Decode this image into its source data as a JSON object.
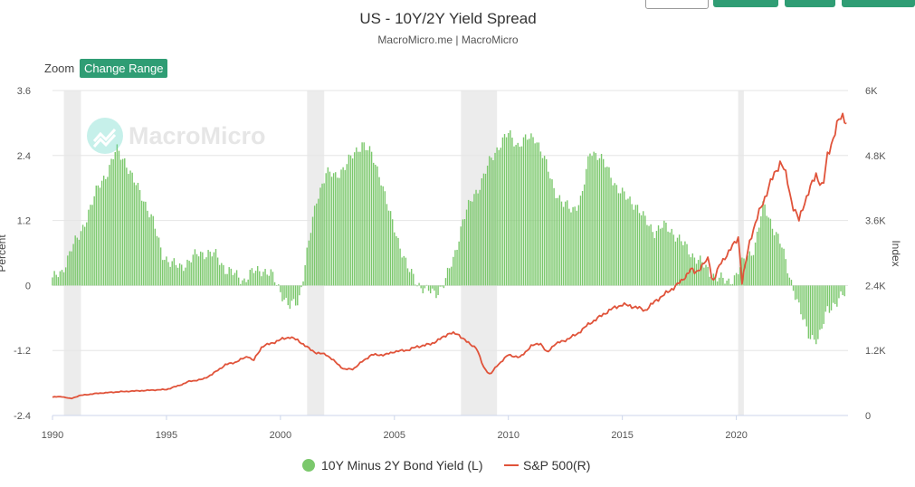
{
  "header": {
    "title": "US - 10Y/2Y Yield Spread",
    "subtitle": "MacroMicro.me | MacroMicro"
  },
  "controls": {
    "zoom_label": "Zoom",
    "change_range_label": "Change Range"
  },
  "watermark": {
    "text": "MacroMicro"
  },
  "colors": {
    "spread_bars": "#7bc86c",
    "sp500_line": "#e0533a",
    "recession_band": "#ececec",
    "accent_button": "#2f9d74"
  },
  "chart_data": {
    "type": "bar+line",
    "title": "US - 10Y/2Y Yield Spread",
    "subtitle": "MacroMicro.me | MacroMicro",
    "y_left_label": "Percent",
    "y_right_label": "Index",
    "y_left_range": [
      -2.4,
      3.6
    ],
    "y_left_ticks": [
      "3.6",
      "2.4",
      "1.2",
      "0",
      "-1.2",
      "-2.4"
    ],
    "y_right_range": [
      0,
      6000
    ],
    "y_right_ticks": [
      "6K",
      "4.8K",
      "3.6K",
      "2.4K",
      "1.2K",
      "0"
    ],
    "x_range": [
      1990,
      2024.9
    ],
    "x_ticks": [
      "1990",
      "1995",
      "2000",
      "2005",
      "2010",
      "2015",
      "2020"
    ],
    "recessions": [
      [
        1990.5,
        1991.25
      ],
      [
        2001.17,
        2001.92
      ],
      [
        2007.92,
        2009.5
      ],
      [
        2020.08,
        2020.33
      ]
    ],
    "legend": [
      "10Y Minus 2Y Bond Yield (L)",
      "S&P 500(R)"
    ],
    "legend_position": "bottom-center",
    "series": [
      {
        "name": "10Y Minus 2Y Bond Yield (L)",
        "type": "bar",
        "points": [
          [
            1990.0,
            0.15
          ],
          [
            1990.4,
            0.2
          ],
          [
            1990.8,
            0.7
          ],
          [
            1991.2,
            0.9
          ],
          [
            1991.6,
            1.4
          ],
          [
            1992.0,
            1.8
          ],
          [
            1992.4,
            2.1
          ],
          [
            1992.8,
            2.5
          ],
          [
            1993.2,
            2.3
          ],
          [
            1993.6,
            1.9
          ],
          [
            1994.0,
            1.6
          ],
          [
            1994.4,
            1.2
          ],
          [
            1994.8,
            0.6
          ],
          [
            1995.2,
            0.4
          ],
          [
            1995.6,
            0.35
          ],
          [
            1996.0,
            0.45
          ],
          [
            1996.4,
            0.6
          ],
          [
            1996.8,
            0.6
          ],
          [
            1997.2,
            0.55
          ],
          [
            1997.6,
            0.3
          ],
          [
            1998.0,
            0.2
          ],
          [
            1998.4,
            0.1
          ],
          [
            1998.8,
            0.25
          ],
          [
            1999.2,
            0.3
          ],
          [
            1999.6,
            0.2
          ],
          [
            2000.0,
            -0.1
          ],
          [
            2000.4,
            -0.4
          ],
          [
            2000.8,
            -0.3
          ],
          [
            2001.2,
            0.7
          ],
          [
            2001.6,
            1.6
          ],
          [
            2002.0,
            2.1
          ],
          [
            2002.4,
            2.0
          ],
          [
            2002.8,
            2.2
          ],
          [
            2003.2,
            2.4
          ],
          [
            2003.6,
            2.65
          ],
          [
            2004.0,
            2.4
          ],
          [
            2004.4,
            2.0
          ],
          [
            2004.8,
            1.3
          ],
          [
            2005.2,
            0.8
          ],
          [
            2005.6,
            0.3
          ],
          [
            2006.0,
            0.05
          ],
          [
            2006.4,
            -0.1
          ],
          [
            2006.8,
            -0.15
          ],
          [
            2007.2,
            0.05
          ],
          [
            2007.6,
            0.5
          ],
          [
            2008.0,
            1.2
          ],
          [
            2008.4,
            1.6
          ],
          [
            2008.8,
            1.9
          ],
          [
            2009.2,
            2.3
          ],
          [
            2009.6,
            2.6
          ],
          [
            2010.0,
            2.8
          ],
          [
            2010.4,
            2.6
          ],
          [
            2010.8,
            2.7
          ],
          [
            2011.2,
            2.75
          ],
          [
            2011.6,
            2.3
          ],
          [
            2012.0,
            1.8
          ],
          [
            2012.4,
            1.5
          ],
          [
            2012.8,
            1.4
          ],
          [
            2013.2,
            1.6
          ],
          [
            2013.6,
            2.5
          ],
          [
            2014.0,
            2.4
          ],
          [
            2014.4,
            2.1
          ],
          [
            2014.8,
            1.8
          ],
          [
            2015.2,
            1.6
          ],
          [
            2015.6,
            1.5
          ],
          [
            2016.0,
            1.2
          ],
          [
            2016.4,
            1.0
          ],
          [
            2016.8,
            1.1
          ],
          [
            2017.2,
            1.0
          ],
          [
            2017.6,
            0.8
          ],
          [
            2018.0,
            0.6
          ],
          [
            2018.4,
            0.45
          ],
          [
            2018.8,
            0.25
          ],
          [
            2019.2,
            0.15
          ],
          [
            2019.6,
            0.05
          ],
          [
            2020.0,
            0.2
          ],
          [
            2020.4,
            0.5
          ],
          [
            2020.8,
            0.7
          ],
          [
            2021.2,
            1.5
          ],
          [
            2021.6,
            1.1
          ],
          [
            2022.0,
            0.7
          ],
          [
            2022.4,
            0.1
          ],
          [
            2022.8,
            -0.5
          ],
          [
            2023.2,
            -0.9
          ],
          [
            2023.6,
            -1.05
          ],
          [
            2024.0,
            -0.4
          ],
          [
            2024.4,
            -0.35
          ],
          [
            2024.8,
            -0.1
          ]
        ]
      },
      {
        "name": "S&P 500(R)",
        "type": "line",
        "points": [
          [
            1990.0,
            340
          ],
          [
            1990.4,
            350
          ],
          [
            1990.8,
            310
          ],
          [
            1991.2,
            370
          ],
          [
            1991.6,
            390
          ],
          [
            1992.0,
            410
          ],
          [
            1993.0,
            440
          ],
          [
            1994.0,
            460
          ],
          [
            1995.0,
            480
          ],
          [
            1995.6,
            560
          ],
          [
            1996.0,
            630
          ],
          [
            1996.6,
            670
          ],
          [
            1997.0,
            760
          ],
          [
            1997.6,
            940
          ],
          [
            1998.0,
            980
          ],
          [
            1998.6,
            1100
          ],
          [
            1998.8,
            1000
          ],
          [
            1999.2,
            1280
          ],
          [
            1999.6,
            1330
          ],
          [
            2000.0,
            1400
          ],
          [
            2000.4,
            1450
          ],
          [
            2000.8,
            1380
          ],
          [
            2001.2,
            1250
          ],
          [
            2001.6,
            1150
          ],
          [
            2002.0,
            1130
          ],
          [
            2002.6,
            920
          ],
          [
            2002.8,
            850
          ],
          [
            2003.2,
            860
          ],
          [
            2003.6,
            1000
          ],
          [
            2004.0,
            1120
          ],
          [
            2004.6,
            1120
          ],
          [
            2005.0,
            1180
          ],
          [
            2005.6,
            1210
          ],
          [
            2006.0,
            1270
          ],
          [
            2006.6,
            1320
          ],
          [
            2007.0,
            1410
          ],
          [
            2007.4,
            1520
          ],
          [
            2007.8,
            1500
          ],
          [
            2008.2,
            1350
          ],
          [
            2008.6,
            1250
          ],
          [
            2008.9,
            900
          ],
          [
            2009.2,
            750
          ],
          [
            2009.5,
            920
          ],
          [
            2010.0,
            1120
          ],
          [
            2010.5,
            1070
          ],
          [
            2011.0,
            1280
          ],
          [
            2011.4,
            1340
          ],
          [
            2011.7,
            1150
          ],
          [
            2012.0,
            1310
          ],
          [
            2012.5,
            1390
          ],
          [
            2013.0,
            1500
          ],
          [
            2013.5,
            1680
          ],
          [
            2014.0,
            1820
          ],
          [
            2014.5,
            1960
          ],
          [
            2015.0,
            2050
          ],
          [
            2015.6,
            2000
          ],
          [
            2016.0,
            1940
          ],
          [
            2016.5,
            2130
          ],
          [
            2017.0,
            2280
          ],
          [
            2017.6,
            2480
          ],
          [
            2018.0,
            2700
          ],
          [
            2018.2,
            2630
          ],
          [
            2018.8,
            2900
          ],
          [
            2018.95,
            2450
          ],
          [
            2019.3,
            2800
          ],
          [
            2019.8,
            3100
          ],
          [
            2020.1,
            3300
          ],
          [
            2020.25,
            2450
          ],
          [
            2020.6,
            3250
          ],
          [
            2021.0,
            3750
          ],
          [
            2021.5,
            4300
          ],
          [
            2021.95,
            4700
          ],
          [
            2022.2,
            4400
          ],
          [
            2022.45,
            3900
          ],
          [
            2022.75,
            3600
          ],
          [
            2023.0,
            3950
          ],
          [
            2023.5,
            4450
          ],
          [
            2023.8,
            4200
          ],
          [
            2024.0,
            4800
          ],
          [
            2024.5,
            5450
          ],
          [
            2024.7,
            5550
          ],
          [
            2024.85,
            5400
          ]
        ]
      }
    ]
  }
}
